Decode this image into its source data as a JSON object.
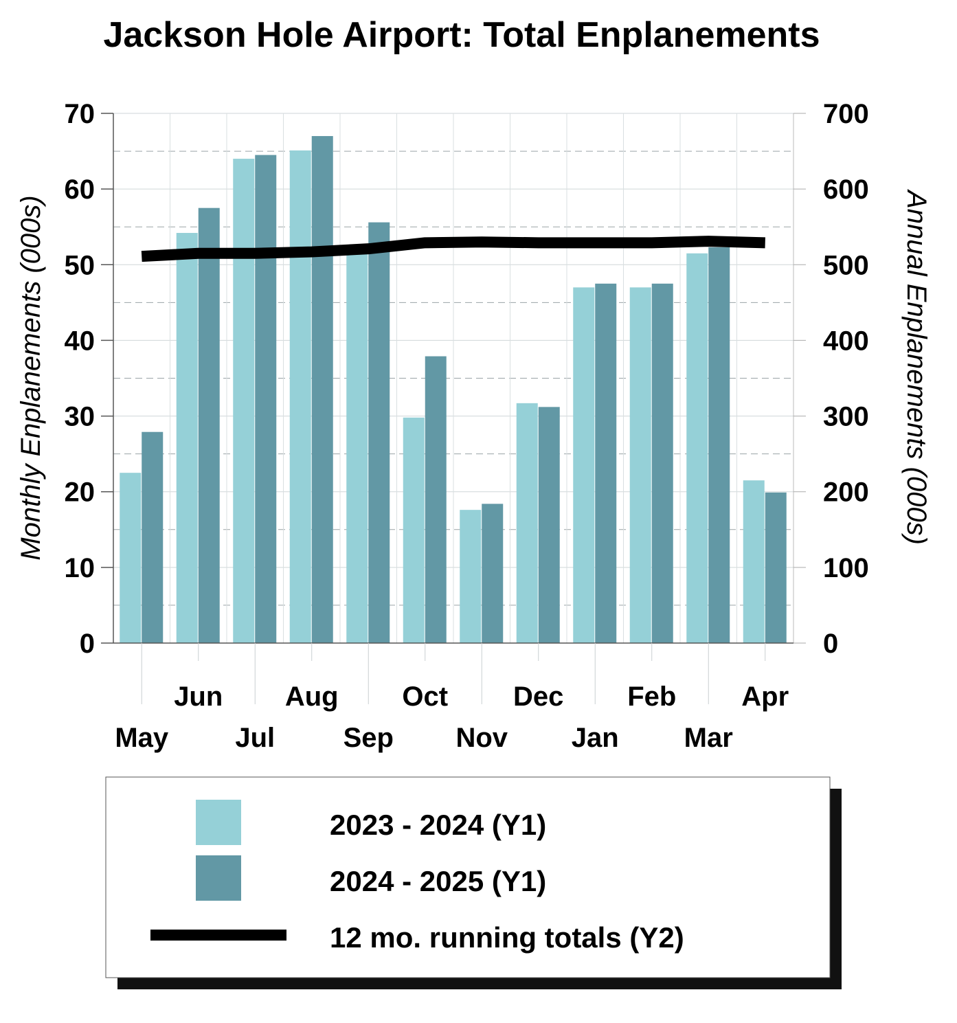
{
  "chart_data": {
    "type": "bar",
    "title": "Jackson Hole Airport: Total Enplanements",
    "ylabel": "Monthly Enplanements (000s)",
    "y2label": "Annual Enplanements (000s)",
    "ylim": [
      0,
      70
    ],
    "y2lim": [
      0,
      700
    ],
    "yticks": [
      "0",
      "10",
      "20",
      "30",
      "40",
      "50",
      "60",
      "70"
    ],
    "y2ticks": [
      "0",
      "100",
      "200",
      "300",
      "400",
      "500",
      "600",
      "700"
    ],
    "categories": [
      "May",
      "Jun",
      "Jul",
      "Aug",
      "Sep",
      "Oct",
      "Nov",
      "Dec",
      "Jan",
      "Feb",
      "Mar",
      "Apr"
    ],
    "series": [
      {
        "name": "2023 - 2024 (Y1)",
        "type": "bar",
        "axis": "y1",
        "color": "#95d0d7",
        "values": [
          22.5,
          54.2,
          64.0,
          65.1,
          51.5,
          29.8,
          17.6,
          31.7,
          47.0,
          47.0,
          51.5,
          21.5
        ]
      },
      {
        "name": "2024 - 2025 (Y1)",
        "type": "bar",
        "axis": "y1",
        "color": "#6298a5",
        "values": [
          27.9,
          57.5,
          64.5,
          67.0,
          55.6,
          37.9,
          18.4,
          31.2,
          47.5,
          47.5,
          52.3,
          19.9
        ]
      },
      {
        "name": "12 mo. running totals (Y2)",
        "type": "line",
        "axis": "y2",
        "color": "#000000",
        "values": [
          511,
          515,
          515,
          517,
          521,
          529,
          530,
          529,
          529,
          529,
          531,
          529
        ]
      }
    ],
    "grid": true,
    "legend": "bottom"
  }
}
